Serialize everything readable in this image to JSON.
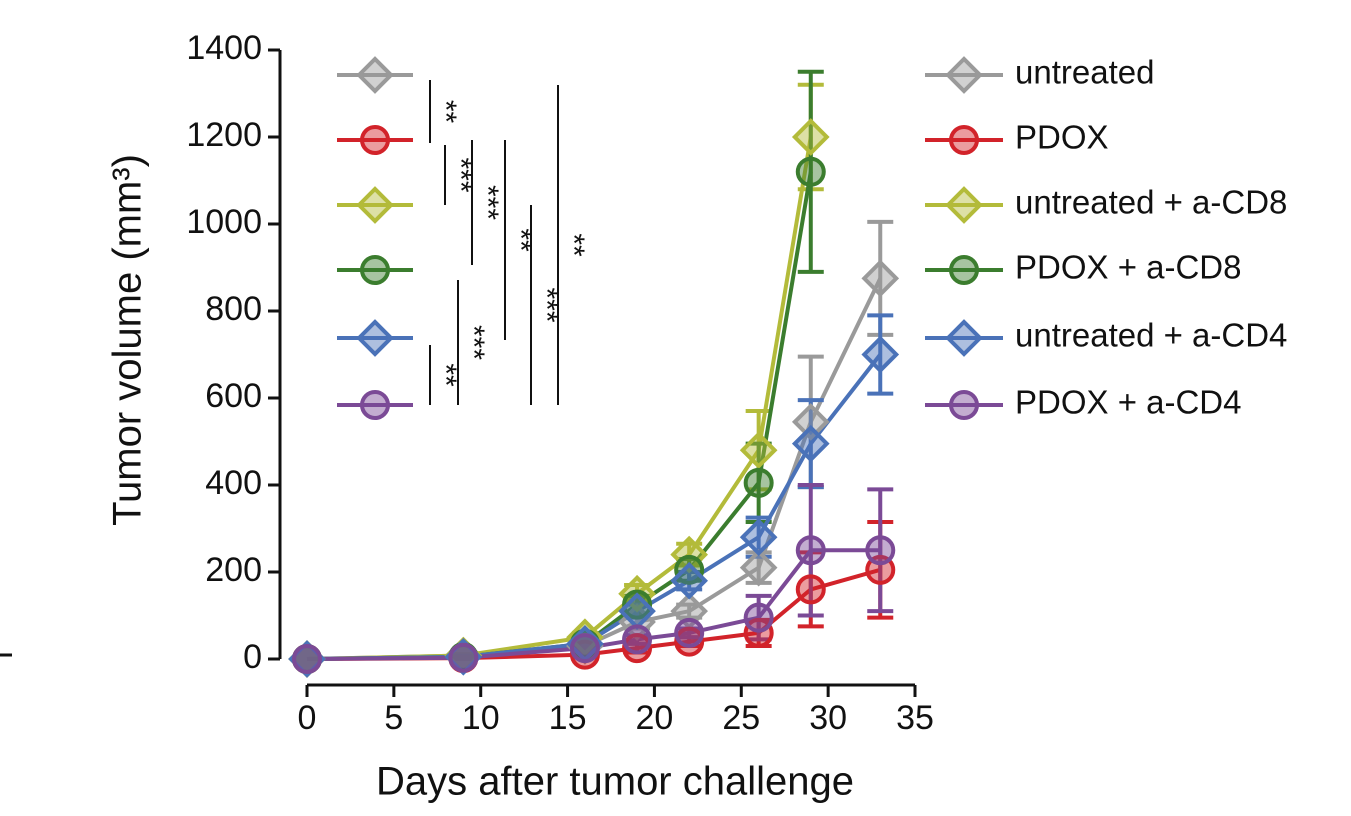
{
  "chart_data": {
    "type": "line",
    "x_label": "Days after tumor challenge",
    "y_label": "Tumor volume (mm³)",
    "x": [
      0,
      9,
      16,
      19,
      22,
      26,
      29,
      33
    ],
    "xlim": [
      0,
      35
    ],
    "xticks": [
      0,
      5,
      10,
      15,
      20,
      25,
      30,
      35
    ],
    "ylim": [
      0,
      1400
    ],
    "yticks": [
      0,
      200,
      400,
      600,
      800,
      1000,
      1200,
      1400
    ],
    "series": [
      {
        "name": "untreated",
        "color": "#9a9a9a",
        "marker": "diamond",
        "values": [
          0,
          8,
          30,
          85,
          110,
          210,
          545,
          875
        ],
        "errors": [
          0,
          3,
          10,
          15,
          15,
          35,
          150,
          130
        ]
      },
      {
        "name": "PDOX",
        "color": "#d2232a",
        "marker": "circle",
        "values": [
          0,
          2,
          10,
          25,
          40,
          60,
          160,
          205
        ],
        "errors": [
          0,
          2,
          5,
          10,
          10,
          30,
          85,
          110
        ]
      },
      {
        "name": "untreated + a-CD8",
        "color": "#b3bb3a",
        "marker": "diamond",
        "values": [
          0,
          8,
          50,
          150,
          240,
          480,
          1200,
          null
        ],
        "errors": [
          0,
          3,
          10,
          20,
          25,
          90,
          120,
          null
        ]
      },
      {
        "name": "PDOX + a-CD8",
        "color": "#3b7d2e",
        "marker": "circle",
        "values": [
          0,
          5,
          35,
          125,
          205,
          405,
          1120,
          null
        ],
        "errors": [
          0,
          3,
          10,
          20,
          25,
          90,
          230,
          null
        ]
      },
      {
        "name": "untreated + a-CD4",
        "color": "#4a72b8",
        "marker": "diamond",
        "values": [
          0,
          5,
          35,
          110,
          180,
          280,
          495,
          700
        ],
        "errors": [
          0,
          3,
          10,
          15,
          20,
          45,
          100,
          90
        ]
      },
      {
        "name": "PDOX + a-CD4",
        "color": "#7b4a96",
        "marker": "circle",
        "values": [
          0,
          3,
          25,
          45,
          60,
          95,
          250,
          250
        ],
        "errors": [
          0,
          2,
          5,
          10,
          10,
          50,
          150,
          140
        ]
      }
    ],
    "annotations": [
      "**",
      "***",
      "***",
      "**",
      "***",
      "**",
      "**",
      "***"
    ]
  }
}
